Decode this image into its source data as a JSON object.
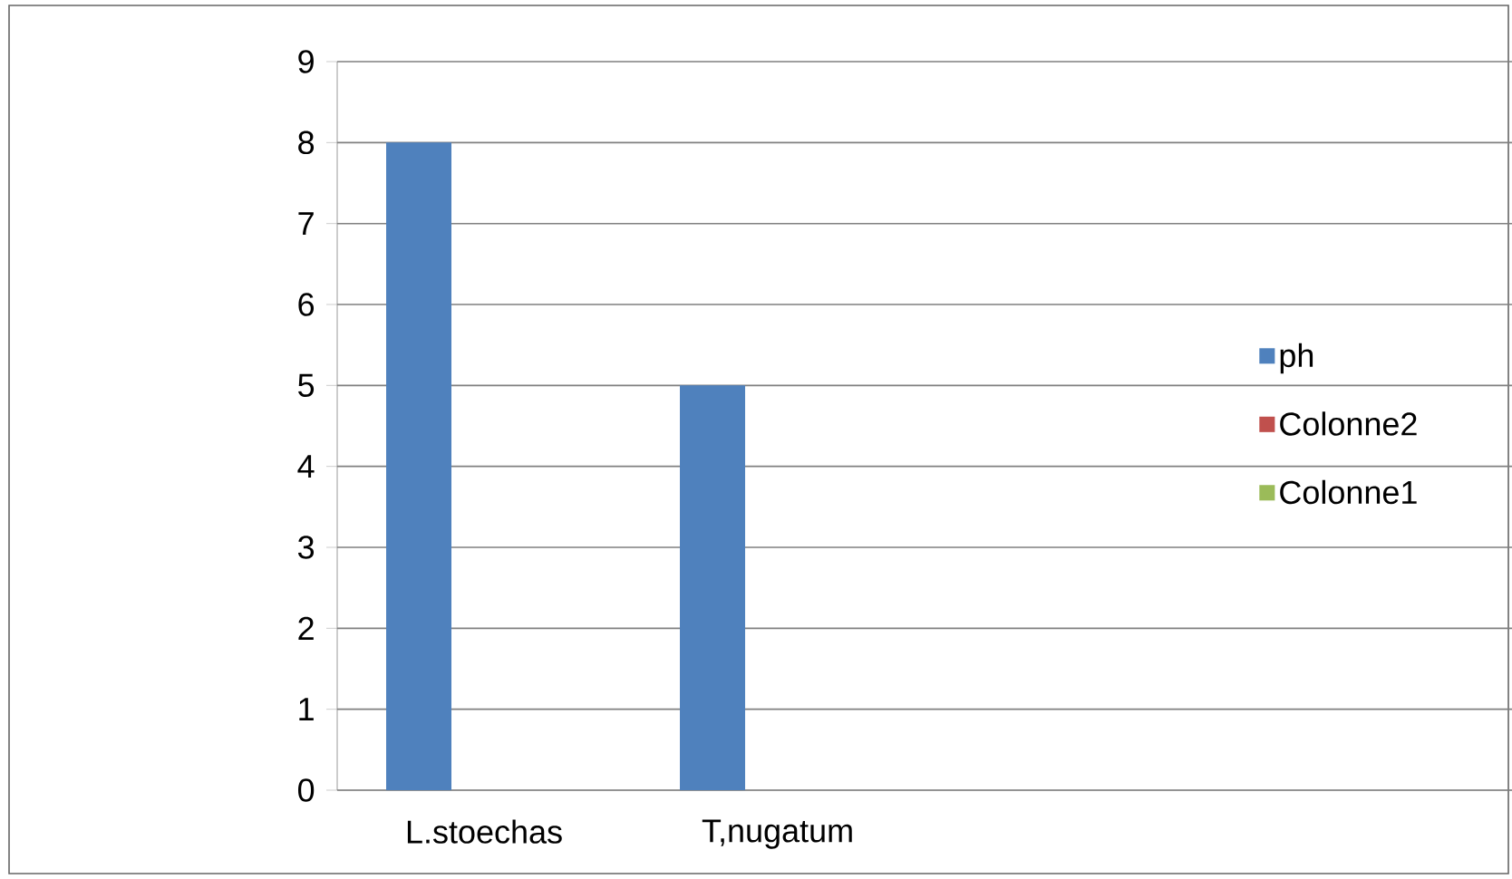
{
  "chart_data": {
    "type": "bar",
    "categories": [
      "L.stoechas",
      "T,nugatum",
      null,
      null
    ],
    "series": [
      {
        "name": "ph",
        "color": "#4f81bd",
        "values": [
          8,
          5,
          null,
          null
        ]
      },
      {
        "name": "Colonne2",
        "color": "#c0504d",
        "values": [
          null,
          null,
          null,
          null
        ]
      },
      {
        "name": "Colonne1",
        "color": "#9bbb59",
        "values": [
          null,
          null,
          null,
          null
        ]
      }
    ],
    "ylim": [
      0,
      9
    ],
    "yticks": [
      0,
      1,
      2,
      3,
      4,
      5,
      6,
      7,
      8,
      9
    ],
    "grid": "y",
    "legend": "right"
  }
}
